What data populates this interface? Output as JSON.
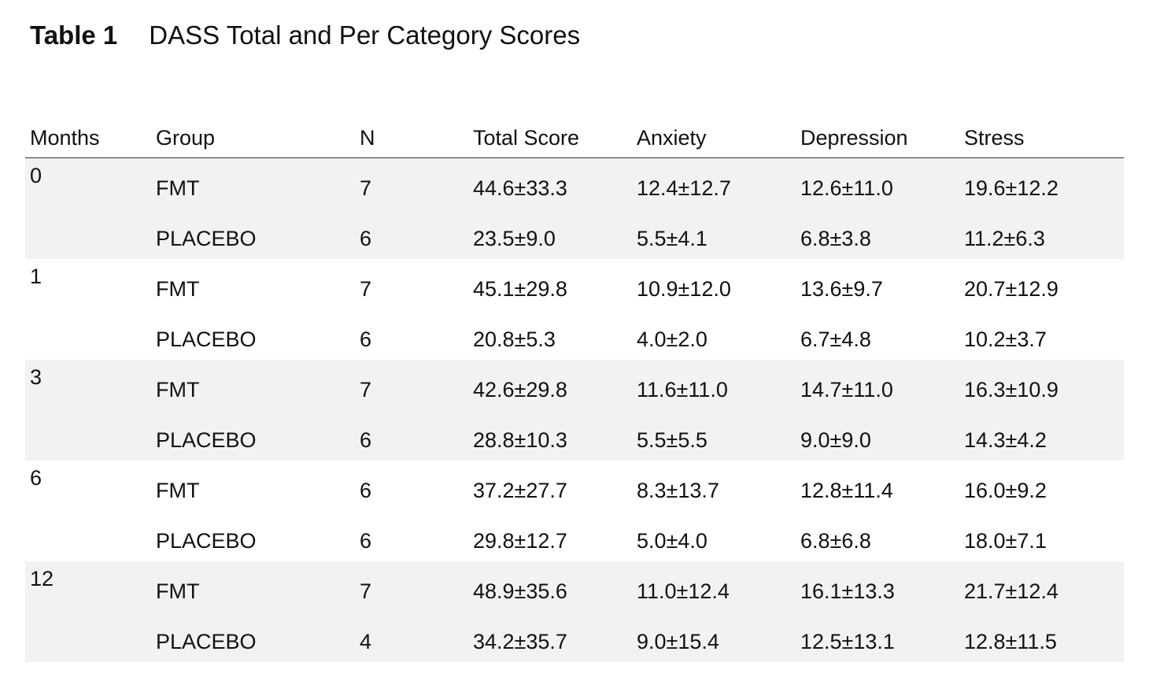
{
  "title": {
    "label": "Table 1",
    "text": "DASS Total and Per Category Scores"
  },
  "table": {
    "headers": [
      "Months",
      "Group",
      "N",
      "Total Score",
      "Anxiety",
      "Depression",
      "Stress"
    ],
    "blocks": [
      {
        "month": "0",
        "rows": [
          {
            "group": "FMT",
            "n": "7",
            "total": "44.6±33.3",
            "anxiety": "12.4±12.7",
            "depression": "12.6±11.0",
            "stress": "19.6±12.2"
          },
          {
            "group": "PLACEBO",
            "n": "6",
            "total": "23.5±9.0",
            "anxiety": "5.5±4.1",
            "depression": "6.8±3.8",
            "stress": "11.2±6.3"
          }
        ]
      },
      {
        "month": "1",
        "rows": [
          {
            "group": "FMT",
            "n": "7",
            "total": "45.1±29.8",
            "anxiety": "10.9±12.0",
            "depression": "13.6±9.7",
            "stress": "20.7±12.9"
          },
          {
            "group": "PLACEBO",
            "n": "6",
            "total": "20.8±5.3",
            "anxiety": "4.0±2.0",
            "depression": "6.7±4.8",
            "stress": "10.2±3.7"
          }
        ]
      },
      {
        "month": "3",
        "rows": [
          {
            "group": "FMT",
            "n": "7",
            "total": "42.6±29.8",
            "anxiety": "11.6±11.0",
            "depression": "14.7±11.0",
            "stress": "16.3±10.9"
          },
          {
            "group": "PLACEBO",
            "n": "6",
            "total": "28.8±10.3",
            "anxiety": "5.5±5.5",
            "depression": "9.0±9.0",
            "stress": "14.3±4.2"
          }
        ]
      },
      {
        "month": "6",
        "rows": [
          {
            "group": "FMT",
            "n": "6",
            "total": "37.2±27.7",
            "anxiety": "8.3±13.7",
            "depression": "12.8±11.4",
            "stress": "16.0±9.2"
          },
          {
            "group": "PLACEBO",
            "n": "6",
            "total": "29.8±12.7",
            "anxiety": "5.0±4.0",
            "depression": "6.8±6.8",
            "stress": "18.0±7.1"
          }
        ]
      },
      {
        "month": "12",
        "rows": [
          {
            "group": "FMT",
            "n": "7",
            "total": "48.9±35.6",
            "anxiety": "11.0±12.4",
            "depression": "16.1±13.3",
            "stress": "21.7±12.4"
          },
          {
            "group": "PLACEBO",
            "n": "4",
            "total": "34.2±35.7",
            "anxiety": "9.0±15.4",
            "depression": "12.5±13.1",
            "stress": "12.8±11.5"
          }
        ]
      }
    ]
  }
}
